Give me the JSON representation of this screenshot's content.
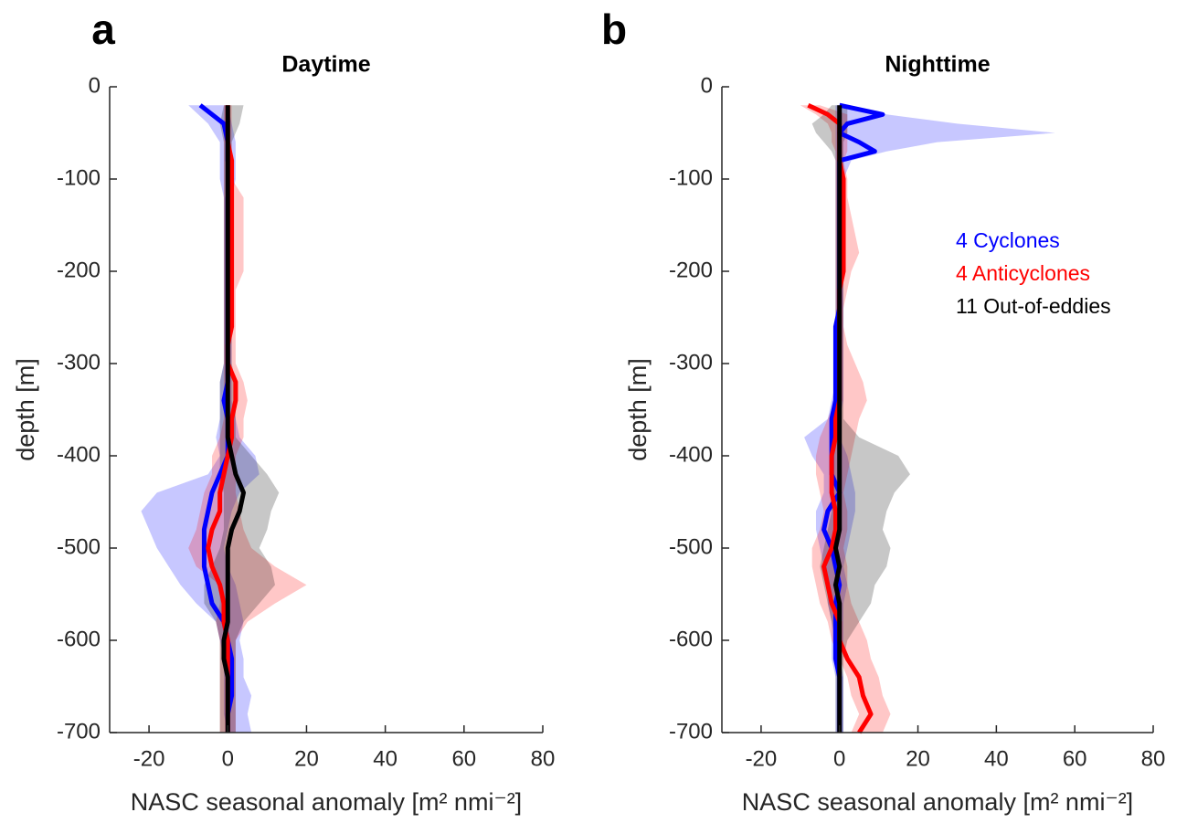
{
  "chart_data": [
    {
      "type": "line",
      "label": "a",
      "title": "Daytime",
      "ylabel": "depth [m]",
      "xlabel": "NASC seasonal anomaly [m² nmi⁻²]",
      "y": [
        -20,
        -40,
        -60,
        -80,
        -100,
        -120,
        -140,
        -160,
        -180,
        -200,
        -220,
        -240,
        -260,
        -280,
        -300,
        -320,
        -340,
        -360,
        -380,
        -400,
        -420,
        -440,
        -460,
        -480,
        -500,
        -520,
        -540,
        -560,
        -580,
        -600,
        -620,
        -640,
        -660,
        -680,
        -700
      ],
      "xlim": [
        -30,
        80
      ],
      "xticks": [
        -20,
        0,
        20,
        40,
        60,
        80
      ],
      "ylim": [
        -700,
        0
      ],
      "yticks": [
        0,
        -100,
        -200,
        -300,
        -400,
        -500,
        -600,
        -700
      ],
      "series": [
        {
          "color": "#0000ff",
          "values": [
            -7,
            -1,
            0,
            0,
            1,
            0,
            0,
            0,
            0,
            0,
            0,
            0,
            0,
            0,
            0,
            0,
            -1,
            0,
            0,
            0,
            -2,
            -4,
            -5,
            -6,
            -6,
            -6,
            -5,
            -4,
            -1,
            0,
            1,
            1,
            1,
            0,
            0
          ],
          "lower": [
            -10,
            -5,
            -2,
            -2,
            -2,
            -1,
            -1,
            -1,
            -1,
            -1,
            -1,
            -1,
            -1,
            -1,
            -1,
            -2,
            -2,
            -2,
            -3,
            -2,
            -5,
            -18,
            -22,
            -20,
            -18,
            -15,
            -12,
            -8,
            -3,
            -2,
            -1,
            -1,
            -1,
            -1,
            0
          ],
          "upper": [
            0,
            1,
            2,
            2,
            2,
            1,
            1,
            1,
            1,
            1,
            1,
            1,
            1,
            1,
            1,
            1,
            1,
            2,
            3,
            7,
            8,
            3,
            1,
            0,
            -1,
            0,
            2,
            3,
            4,
            3,
            4,
            4,
            6,
            5,
            6
          ]
        },
        {
          "color": "#ff0000",
          "values": [
            0,
            0,
            0,
            1,
            1,
            1,
            1,
            1,
            1,
            1,
            1,
            1,
            1,
            0,
            0,
            2,
            2,
            1,
            1,
            0,
            -1,
            -2,
            -2,
            -4,
            -5,
            -4,
            -2,
            -1,
            -1,
            0,
            0,
            0,
            0,
            0,
            0
          ],
          "lower": [
            -1,
            -1,
            -1,
            -1,
            -1,
            -1,
            -1,
            -1,
            -1,
            -1,
            -1,
            -1,
            -1,
            -1,
            -1,
            -1,
            -1,
            -1,
            -2,
            -4,
            -4,
            -6,
            -7,
            -8,
            -10,
            -8,
            -2,
            -2,
            -3,
            -2,
            -2,
            -2,
            -2,
            -2,
            -2
          ],
          "upper": [
            1,
            1,
            1,
            1,
            1,
            4,
            4,
            4,
            4,
            4,
            2,
            2,
            2,
            2,
            2,
            4,
            5,
            4,
            4,
            2,
            2,
            2,
            3,
            4,
            6,
            12,
            20,
            12,
            5,
            2,
            2,
            2,
            2,
            2,
            2
          ]
        },
        {
          "color": "#000000",
          "values": [
            0,
            0,
            0,
            0,
            0,
            0,
            0,
            0,
            0,
            0,
            0,
            0,
            0,
            0,
            0,
            0,
            0,
            0,
            0,
            1,
            2,
            4,
            3,
            1,
            0,
            0,
            0,
            0,
            0,
            -1,
            -1,
            0,
            0,
            0,
            0
          ],
          "lower": [
            -1,
            -2,
            -1,
            -1,
            -1,
            -1,
            -1,
            -1,
            -1,
            -1,
            -1,
            -1,
            -1,
            -1,
            -1,
            -2,
            -2,
            -2,
            -2,
            -2,
            -2,
            -1,
            -1,
            -1,
            -2,
            -4,
            -6,
            -6,
            -3,
            -2,
            -2,
            -2,
            -2,
            -2,
            -2
          ],
          "upper": [
            4,
            3,
            1,
            1,
            1,
            1,
            1,
            1,
            1,
            1,
            1,
            1,
            1,
            1,
            1,
            2,
            2,
            2,
            2,
            6,
            10,
            13,
            11,
            10,
            8,
            11,
            12,
            8,
            4,
            2,
            2,
            2,
            2,
            2,
            2
          ]
        }
      ]
    },
    {
      "type": "line",
      "label": "b",
      "title": "Nighttime",
      "ylabel": "depth [m]",
      "xlabel": "NASC seasonal anomaly [m² nmi⁻²]",
      "legend": "upper right",
      "y": [
        -20,
        -30,
        -40,
        -50,
        -60,
        -70,
        -80,
        -100,
        -120,
        -140,
        -160,
        -180,
        -200,
        -220,
        -240,
        -260,
        -280,
        -300,
        -320,
        -340,
        -360,
        -380,
        -400,
        -420,
        -440,
        -460,
        -480,
        -500,
        -520,
        -540,
        -560,
        -580,
        -600,
        -620,
        -640,
        -660,
        -680,
        -700
      ],
      "xlim": [
        -30,
        80
      ],
      "xticks": [
        -20,
        0,
        20,
        40,
        60,
        80
      ],
      "ylim": [
        -700,
        0
      ],
      "yticks": [
        0,
        -100,
        -200,
        -300,
        -400,
        -500,
        -600,
        -700
      ],
      "series": [
        {
          "name": "4 Cyclones",
          "color": "#0000ff",
          "values": [
            0,
            11,
            2,
            0,
            5,
            9,
            0,
            0,
            0,
            0,
            0,
            0,
            0,
            0,
            0,
            -1,
            -1,
            -1,
            -1,
            -1,
            -2,
            -2,
            -2,
            -2,
            0,
            -3,
            -4,
            -2,
            -1,
            0,
            -1,
            -1,
            -1,
            -1,
            0,
            0,
            0,
            0
          ],
          "lower": [
            -1,
            -1,
            -1,
            -1,
            -1,
            -1,
            -1,
            -1,
            -1,
            -1,
            -1,
            -1,
            -1,
            -1,
            -1,
            -1,
            -1,
            -1,
            -1,
            -2,
            -3,
            -9,
            -7,
            -4,
            -4,
            -6,
            -6,
            -5,
            -4,
            -3,
            -3,
            -2,
            -2,
            -2,
            -1,
            -1,
            -1,
            -1
          ],
          "upper": [
            2,
            12,
            30,
            55,
            25,
            12,
            3,
            1,
            1,
            1,
            1,
            1,
            1,
            1,
            1,
            1,
            1,
            1,
            1,
            1,
            0,
            0,
            2,
            3,
            4,
            4,
            3,
            2,
            1,
            2,
            1,
            1,
            1,
            0,
            1,
            1,
            1,
            1
          ]
        },
        {
          "name": "4 Anticyclones",
          "color": "#ff0000",
          "values": [
            -8,
            -3,
            0,
            0,
            0,
            0,
            0,
            1,
            1,
            1,
            1,
            1,
            1,
            0,
            0,
            0,
            0,
            0,
            0,
            0,
            -1,
            -1,
            -2,
            -2,
            -2,
            -1,
            -1,
            -2,
            -4,
            -3,
            -2,
            0,
            0,
            2,
            5,
            6,
            8,
            5
          ],
          "lower": [
            -10,
            -6,
            -3,
            -2,
            -2,
            -1,
            -1,
            -1,
            -1,
            -1,
            -1,
            -1,
            -1,
            -1,
            -1,
            -1,
            -1,
            -1,
            -1,
            -1,
            -3,
            -5,
            -6,
            -6,
            -5,
            -4,
            -5,
            -7,
            -7,
            -6,
            -5,
            -3,
            -2,
            0,
            2,
            3,
            5,
            3
          ],
          "upper": [
            -5,
            2,
            2,
            2,
            2,
            2,
            1,
            2,
            2,
            3,
            4,
            5,
            3,
            2,
            1,
            1,
            2,
            4,
            6,
            7,
            5,
            4,
            3,
            2,
            1,
            2,
            2,
            1,
            2,
            2,
            3,
            5,
            7,
            8,
            10,
            11,
            13,
            11
          ]
        },
        {
          "name": "11 Out-of-eddies",
          "color": "#000000",
          "values": [
            0,
            0,
            0,
            0,
            0,
            0,
            0,
            0,
            0,
            0,
            0,
            0,
            0,
            0,
            0,
            0,
            0,
            0,
            0,
            0,
            0,
            0,
            0,
            0,
            0,
            0,
            0,
            -1,
            0,
            -1,
            0,
            0,
            0,
            0,
            0,
            0,
            0,
            0
          ],
          "lower": [
            -2,
            -4,
            -7,
            -6,
            -4,
            -2,
            -1,
            -1,
            -1,
            -1,
            -1,
            -1,
            -1,
            -1,
            -1,
            -1,
            -1,
            -1,
            -1,
            -1,
            -1,
            -2,
            -2,
            -2,
            -2,
            -2,
            -3,
            -4,
            -5,
            -4,
            -3,
            -2,
            -1,
            -1,
            -1,
            -1,
            -1,
            -1
          ],
          "upper": [
            2,
            2,
            2,
            2,
            1,
            1,
            1,
            1,
            1,
            1,
            1,
            1,
            1,
            1,
            1,
            1,
            1,
            1,
            1,
            1,
            1,
            5,
            15,
            18,
            14,
            12,
            11,
            13,
            12,
            9,
            8,
            5,
            2,
            1,
            1,
            1,
            1,
            1
          ]
        }
      ]
    }
  ]
}
